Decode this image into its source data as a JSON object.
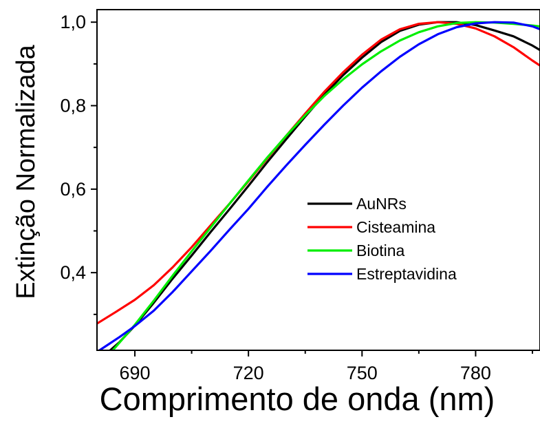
{
  "chart_data": {
    "type": "line",
    "title": "",
    "xlabel": "Comprimento de onda (nm)",
    "ylabel": "Extinção Normalizada",
    "xlim": [
      680,
      797
    ],
    "ylim": [
      0.214,
      1.03
    ],
    "xticks": [
      690,
      720,
      750,
      780
    ],
    "xtick_labels": [
      "690",
      "720",
      "750",
      "780"
    ],
    "yticks": [
      0.4,
      0.6,
      0.8,
      1.0
    ],
    "ytick_labels": [
      "0,4",
      "0,6",
      "0,8",
      "1,0"
    ],
    "grid": false,
    "legend_position": "center-right",
    "series": [
      {
        "name": "AuNRs",
        "color": "#000000",
        "x": [
          683,
          686,
          690,
          695,
          700,
          705,
          710,
          715,
          720,
          725,
          730,
          735,
          740,
          745,
          750,
          755,
          760,
          765,
          770,
          775,
          780,
          785,
          790,
          795,
          797
        ],
        "y": [
          0.21,
          0.234,
          0.273,
          0.328,
          0.386,
          0.441,
          0.497,
          0.552,
          0.608,
          0.665,
          0.72,
          0.774,
          0.826,
          0.873,
          0.915,
          0.952,
          0.979,
          0.994,
          1.0,
          1.0,
          0.993,
          0.98,
          0.966,
          0.944,
          0.933
        ]
      },
      {
        "name": "Cisteamina",
        "color": "#ff0000",
        "x": [
          680,
          685,
          690,
          695,
          700,
          705,
          710,
          715,
          720,
          725,
          730,
          735,
          740,
          745,
          750,
          755,
          760,
          765,
          770,
          775,
          780,
          785,
          790,
          795,
          797
        ],
        "y": [
          0.278,
          0.306,
          0.335,
          0.37,
          0.413,
          0.461,
          0.513,
          0.565,
          0.619,
          0.674,
          0.728,
          0.781,
          0.833,
          0.88,
          0.922,
          0.958,
          0.983,
          0.996,
          1.0,
          0.996,
          0.985,
          0.966,
          0.94,
          0.908,
          0.896
        ]
      },
      {
        "name": "Biotina",
        "color": "#00ee00",
        "x": [
          684,
          686,
          690,
          695,
          700,
          705,
          710,
          715,
          720,
          725,
          730,
          735,
          740,
          745,
          750,
          755,
          760,
          765,
          770,
          775,
          780,
          785,
          790,
          795,
          797
        ],
        "y": [
          0.212,
          0.233,
          0.275,
          0.333,
          0.393,
          0.451,
          0.508,
          0.565,
          0.621,
          0.676,
          0.728,
          0.777,
          0.823,
          0.863,
          0.899,
          0.93,
          0.956,
          0.976,
          0.99,
          0.998,
          1.0,
          0.999,
          0.996,
          0.992,
          0.99
        ]
      },
      {
        "name": "Estreptavidina",
        "color": "#0000ff",
        "x": [
          680,
          683,
          686,
          690,
          695,
          700,
          705,
          710,
          715,
          720,
          725,
          730,
          735,
          740,
          745,
          750,
          755,
          760,
          765,
          770,
          775,
          780,
          785,
          790,
          795,
          797
        ],
        "y": [
          0.21,
          0.228,
          0.246,
          0.272,
          0.309,
          0.354,
          0.403,
          0.452,
          0.503,
          0.553,
          0.606,
          0.657,
          0.706,
          0.754,
          0.8,
          0.843,
          0.882,
          0.917,
          0.947,
          0.971,
          0.988,
          0.997,
          1.0,
          0.999,
          0.99,
          0.983
        ]
      }
    ]
  }
}
